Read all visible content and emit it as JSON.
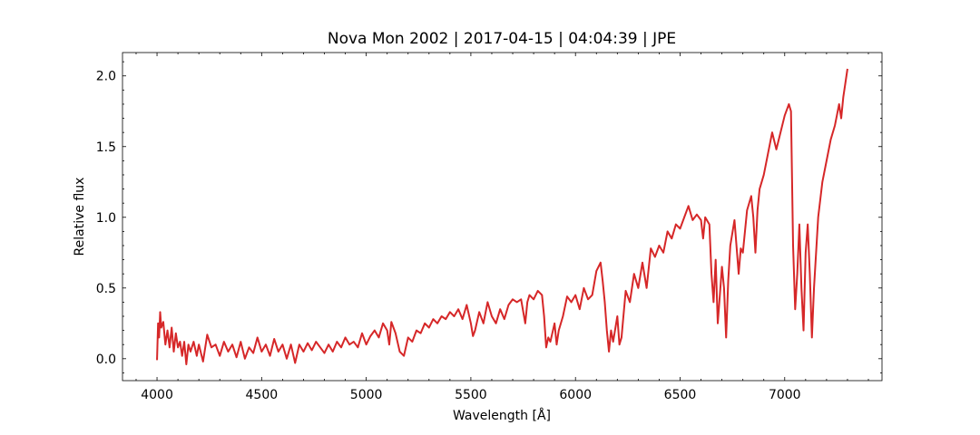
{
  "chart_data": {
    "type": "line",
    "title": "Nova Mon 2002 | 2017-04-15 | 04:04:39 | JPE",
    "xlabel": "Wavelength [Å]",
    "ylabel": "Relative flux",
    "color": "#d62728",
    "xlim": [
      3835,
      7465
    ],
    "ylim": [
      -0.155,
      2.165
    ],
    "xticks": [
      4000,
      4500,
      5000,
      5500,
      6000,
      6500,
      7000
    ],
    "yticks": [
      {
        "value": 0,
        "label": "0.0"
      },
      0.5,
      {
        "value": 1,
        "label": "1.0"
      },
      1.5,
      {
        "value": 2,
        "label": "2.0"
      }
    ],
    "xminorticks": [
      3900,
      4100,
      4200,
      4300,
      4400,
      4600,
      4700,
      4800,
      4900,
      5100,
      5200,
      5300,
      5400,
      5600,
      5700,
      5800,
      5900,
      6100,
      6200,
      6300,
      6400,
      6600,
      6700,
      6800,
      6900,
      7100,
      7200,
      7300,
      7400
    ],
    "yminorticks": [
      -0.1,
      0.1,
      0.2,
      0.3,
      0.4,
      0.6,
      0.7,
      0.8,
      0.9,
      1.1,
      1.2,
      1.3,
      1.4,
      1.6,
      1.7,
      1.8,
      1.9,
      2.1
    ],
    "x": [
      4000,
      4005,
      4010,
      4015,
      4020,
      4030,
      4040,
      4050,
      4060,
      4070,
      4080,
      4090,
      4100,
      4110,
      4120,
      4130,
      4140,
      4150,
      4160,
      4175,
      4190,
      4200,
      4220,
      4240,
      4260,
      4280,
      4300,
      4320,
      4340,
      4360,
      4380,
      4400,
      4420,
      4440,
      4460,
      4480,
      4500,
      4520,
      4540,
      4560,
      4580,
      4600,
      4620,
      4640,
      4660,
      4680,
      4700,
      4720,
      4740,
      4760,
      4780,
      4800,
      4820,
      4840,
      4860,
      4880,
      4900,
      4920,
      4940,
      4960,
      4980,
      5000,
      5020,
      5040,
      5060,
      5080,
      5100,
      5110,
      5120,
      5140,
      5160,
      5180,
      5200,
      5220,
      5240,
      5260,
      5280,
      5300,
      5320,
      5340,
      5360,
      5380,
      5400,
      5420,
      5440,
      5460,
      5480,
      5500,
      5510,
      5520,
      5540,
      5560,
      5580,
      5600,
      5620,
      5640,
      5660,
      5680,
      5700,
      5720,
      5740,
      5760,
      5770,
      5780,
      5800,
      5820,
      5840,
      5850,
      5860,
      5870,
      5880,
      5900,
      5910,
      5920,
      5940,
      5960,
      5980,
      6000,
      6020,
      6040,
      6060,
      6080,
      6100,
      6120,
      6130,
      6140,
      6150,
      6160,
      6170,
      6180,
      6200,
      6210,
      6220,
      6240,
      6260,
      6280,
      6300,
      6320,
      6340,
      6360,
      6380,
      6400,
      6420,
      6440,
      6460,
      6480,
      6500,
      6520,
      6540,
      6560,
      6580,
      6600,
      6610,
      6620,
      6640,
      6650,
      6660,
      6670,
      6680,
      6700,
      6710,
      6720,
      6730,
      6740,
      6760,
      6780,
      6790,
      6800,
      6820,
      6840,
      6850,
      6860,
      6870,
      6880,
      6900,
      6920,
      6940,
      6960,
      6980,
      7000,
      7020,
      7030,
      7040,
      7050,
      7060,
      7070,
      7080,
      7090,
      7100,
      7110,
      7120,
      7130,
      7140,
      7160,
      7180,
      7200,
      7220,
      7240,
      7260,
      7270,
      7280,
      7290,
      7300
    ],
    "values": [
      -0.01,
      0.25,
      0.15,
      0.33,
      0.22,
      0.26,
      0.1,
      0.2,
      0.08,
      0.22,
      0.05,
      0.18,
      0.08,
      0.12,
      0.02,
      0.12,
      -0.04,
      0.1,
      0.05,
      0.12,
      0.02,
      0.1,
      -0.02,
      0.17,
      0.08,
      0.1,
      0.02,
      0.12,
      0.05,
      0.1,
      0.01,
      0.12,
      0.0,
      0.08,
      0.04,
      0.15,
      0.05,
      0.1,
      0.02,
      0.14,
      0.05,
      0.1,
      0.0,
      0.1,
      -0.03,
      0.1,
      0.05,
      0.11,
      0.06,
      0.12,
      0.08,
      0.04,
      0.1,
      0.05,
      0.12,
      0.08,
      0.15,
      0.1,
      0.12,
      0.08,
      0.18,
      0.1,
      0.16,
      0.2,
      0.15,
      0.25,
      0.2,
      0.1,
      0.26,
      0.18,
      0.05,
      0.02,
      0.15,
      0.12,
      0.2,
      0.18,
      0.25,
      0.22,
      0.28,
      0.25,
      0.3,
      0.28,
      0.33,
      0.3,
      0.35,
      0.28,
      0.38,
      0.25,
      0.16,
      0.2,
      0.33,
      0.25,
      0.4,
      0.3,
      0.25,
      0.35,
      0.28,
      0.38,
      0.42,
      0.4,
      0.42,
      0.25,
      0.4,
      0.45,
      0.42,
      0.48,
      0.45,
      0.3,
      0.08,
      0.15,
      0.12,
      0.25,
      0.1,
      0.2,
      0.3,
      0.44,
      0.4,
      0.45,
      0.35,
      0.5,
      0.42,
      0.45,
      0.62,
      0.68,
      0.55,
      0.4,
      0.2,
      0.05,
      0.2,
      0.12,
      0.3,
      0.1,
      0.15,
      0.48,
      0.4,
      0.6,
      0.5,
      0.68,
      0.5,
      0.78,
      0.72,
      0.8,
      0.75,
      0.9,
      0.85,
      0.95,
      0.92,
      1.0,
      1.08,
      0.98,
      1.02,
      0.98,
      0.85,
      1.0,
      0.95,
      0.6,
      0.4,
      0.7,
      0.25,
      0.65,
      0.5,
      0.15,
      0.55,
      0.8,
      0.98,
      0.6,
      0.78,
      0.75,
      1.05,
      1.15,
      1.0,
      0.75,
      1.05,
      1.2,
      1.3,
      1.45,
      1.6,
      1.48,
      1.6,
      1.72,
      1.8,
      1.75,
      0.8,
      0.35,
      0.6,
      0.95,
      0.5,
      0.2,
      0.75,
      0.95,
      0.6,
      0.15,
      0.5,
      1.0,
      1.25,
      1.4,
      1.55,
      1.65,
      1.8,
      1.7,
      1.85,
      1.95,
      2.05
    ]
  }
}
